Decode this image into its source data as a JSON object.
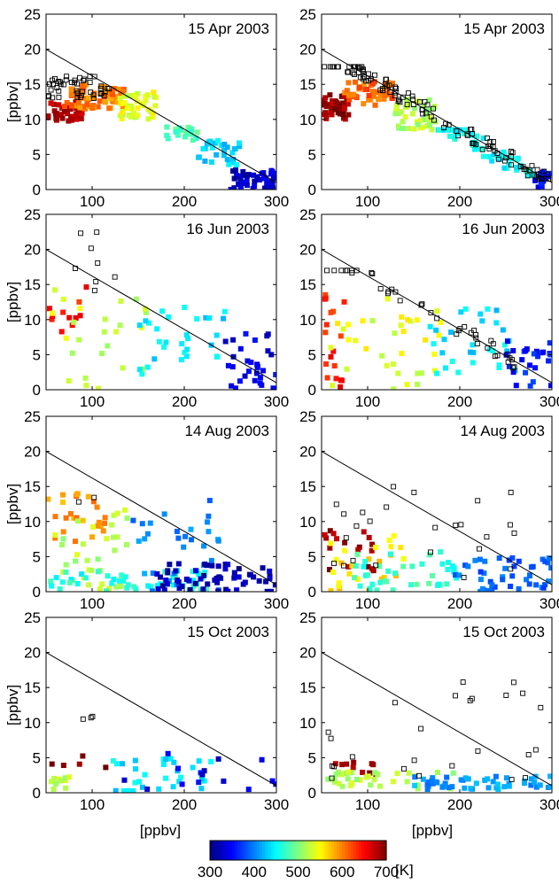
{
  "figure": {
    "xlabel": "[ppbv]",
    "ylabel": "[ppbv]",
    "colorbar": {
      "label": "[K]",
      "ticks": [
        300,
        400,
        500,
        600,
        700
      ],
      "range": [
        300,
        700
      ],
      "colormap": "jet"
    }
  },
  "chart_data": [
    {
      "type": "scatter",
      "row": 0,
      "col": 0,
      "date": "15 Apr 2003",
      "xlim": [
        50,
        300
      ],
      "ylim": [
        0,
        25
      ],
      "xticks": [
        100,
        200,
        300
      ],
      "yticks": [
        0,
        5,
        10,
        15,
        20,
        25
      ],
      "ylabel": "[ppbv]",
      "xlabel": "",
      "reference_line": {
        "x": [
          50,
          300
        ],
        "y": [
          20,
          1
        ]
      },
      "clusters": [
        {
          "marker": "open",
          "n": 45,
          "x": [
            52,
            120
          ],
          "y": [
            13,
            16.5
          ]
        },
        {
          "marker": "filled",
          "color_value": 680,
          "n": 45,
          "x": [
            52,
            90
          ],
          "y": [
            9.5,
            12.5
          ]
        },
        {
          "marker": "filled",
          "color_value": 600,
          "n": 70,
          "x": [
            70,
            135
          ],
          "y": [
            11.5,
            15
          ]
        },
        {
          "marker": "filled",
          "color_value": 540,
          "n": 40,
          "x": [
            130,
            170
          ],
          "y": [
            10,
            14
          ]
        },
        {
          "marker": "filled",
          "color_value": 480,
          "n": 20,
          "x": [
            180,
            215
          ],
          "y": [
            7,
            9
          ]
        },
        {
          "marker": "filled",
          "color_value": 430,
          "n": 30,
          "x": [
            215,
            260
          ],
          "y": [
            3.5,
            7
          ]
        },
        {
          "marker": "filled",
          "color_value": 330,
          "n": 45,
          "x": [
            250,
            300
          ],
          "y": [
            0,
            3
          ]
        }
      ]
    },
    {
      "type": "scatter",
      "row": 0,
      "col": 1,
      "date": "15 Apr 2003",
      "xlim": [
        50,
        300
      ],
      "ylim": [
        0,
        25
      ],
      "xticks": [
        100,
        200,
        300
      ],
      "yticks": [
        0,
        5,
        10,
        15,
        20,
        25
      ],
      "ylabel": "",
      "xlabel": "",
      "reference_line": {
        "x": [
          50,
          300
        ],
        "y": [
          20,
          1
        ]
      },
      "clusters": [
        {
          "marker": "open",
          "n": 110,
          "x": [
            52,
            300
          ],
          "y": [
            1.5,
            17.5
          ],
          "follows_line": true
        },
        {
          "marker": "filled",
          "color_value": 690,
          "n": 45,
          "x": [
            52,
            80
          ],
          "y": [
            10,
            13.5
          ]
        },
        {
          "marker": "filled",
          "color_value": 610,
          "n": 50,
          "x": [
            75,
            130
          ],
          "y": [
            12,
            15.5
          ]
        },
        {
          "marker": "filled",
          "color_value": 520,
          "n": 40,
          "x": [
            130,
            175
          ],
          "y": [
            8.5,
            13
          ]
        },
        {
          "marker": "filled",
          "color_value": 450,
          "n": 60,
          "x": [
            175,
            280
          ],
          "y": [
            2,
            8.5
          ],
          "follows_line": true
        },
        {
          "marker": "filled",
          "color_value": 350,
          "n": 15,
          "x": [
            280,
            300
          ],
          "y": [
            0.3,
            2.5
          ]
        }
      ]
    },
    {
      "type": "scatter",
      "row": 1,
      "col": 0,
      "date": "16 Jun 2003",
      "xlim": [
        50,
        300
      ],
      "ylim": [
        0,
        25
      ],
      "xticks": [
        100,
        200,
        300
      ],
      "yticks": [
        0,
        5,
        10,
        15,
        20,
        25
      ],
      "ylabel": "[ppbv]",
      "xlabel": "",
      "reference_line": {
        "x": [
          50,
          300
        ],
        "y": [
          20,
          1
        ]
      },
      "clusters": [
        {
          "marker": "open",
          "n": 8,
          "x": [
            55,
            135
          ],
          "y": [
            14,
            25
          ]
        },
        {
          "marker": "filled",
          "color_value": 640,
          "n": 12,
          "x": [
            52,
            95
          ],
          "y": [
            8,
            16
          ]
        },
        {
          "marker": "filled",
          "color_value": 530,
          "n": 25,
          "x": [
            55,
            160
          ],
          "y": [
            0,
            15
          ]
        },
        {
          "marker": "filled",
          "color_value": 440,
          "n": 30,
          "x": [
            150,
            250
          ],
          "y": [
            2,
            12
          ]
        },
        {
          "marker": "filled",
          "color_value": 340,
          "n": 30,
          "x": [
            240,
            300
          ],
          "y": [
            0,
            8
          ]
        }
      ]
    },
    {
      "type": "scatter",
      "row": 1,
      "col": 1,
      "date": "16 Jun 2003",
      "xlim": [
        50,
        300
      ],
      "ylim": [
        0,
        25
      ],
      "xticks": [
        100,
        200,
        300
      ],
      "yticks": [
        0,
        5,
        10,
        15,
        20,
        25
      ],
      "ylabel": "",
      "xlabel": "",
      "reference_line": {
        "x": [
          50,
          300
        ],
        "y": [
          20,
          1
        ]
      },
      "clusters": [
        {
          "marker": "open",
          "n": 40,
          "x": [
            55,
            260
          ],
          "y": [
            3,
            17
          ],
          "follows_line": true
        },
        {
          "marker": "filled",
          "color_value": 640,
          "n": 18,
          "x": [
            52,
            75
          ],
          "y": [
            0,
            15
          ]
        },
        {
          "marker": "filled",
          "color_value": 540,
          "n": 35,
          "x": [
            60,
            180
          ],
          "y": [
            0,
            13
          ]
        },
        {
          "marker": "filled",
          "color_value": 440,
          "n": 30,
          "x": [
            160,
            260
          ],
          "y": [
            2,
            12
          ]
        },
        {
          "marker": "filled",
          "color_value": 360,
          "n": 25,
          "x": [
            250,
            300
          ],
          "y": [
            0,
            7
          ]
        }
      ]
    },
    {
      "type": "scatter",
      "row": 2,
      "col": 0,
      "date": "14 Aug 2003",
      "xlim": [
        50,
        300
      ],
      "ylim": [
        0,
        25
      ],
      "xticks": [
        100,
        200,
        300
      ],
      "yticks": [
        0,
        5,
        10,
        15,
        20,
        25
      ],
      "ylabel": "[ppbv]",
      "xlabel": "",
      "reference_line": {
        "x": [
          50,
          300
        ],
        "y": [
          20,
          1
        ]
      },
      "clusters": [
        {
          "marker": "open",
          "n": 2,
          "x": [
            75,
            115
          ],
          "y": [
            12.5,
            13.5
          ]
        },
        {
          "marker": "filled",
          "color_value": 590,
          "n": 25,
          "x": [
            52,
            115
          ],
          "y": [
            7,
            14
          ]
        },
        {
          "marker": "filled",
          "color_value": 520,
          "n": 35,
          "x": [
            52,
            140
          ],
          "y": [
            0,
            12
          ]
        },
        {
          "marker": "filled",
          "color_value": 460,
          "n": 50,
          "x": [
            52,
            230
          ],
          "y": [
            0,
            3
          ]
        },
        {
          "marker": "filled",
          "color_value": 400,
          "n": 30,
          "x": [
            140,
            240
          ],
          "y": [
            0,
            13
          ]
        },
        {
          "marker": "filled",
          "color_value": 320,
          "n": 60,
          "x": [
            170,
            300
          ],
          "y": [
            0,
            4
          ]
        }
      ]
    },
    {
      "type": "scatter",
      "row": 2,
      "col": 1,
      "date": "14 Aug 2003",
      "xlim": [
        50,
        300
      ],
      "ylim": [
        0,
        25
      ],
      "xticks": [
        100,
        200,
        300
      ],
      "yticks": [
        0,
        5,
        10,
        15,
        20,
        25
      ],
      "ylabel": "",
      "xlabel": "",
      "reference_line": {
        "x": [
          50,
          300
        ],
        "y": [
          20,
          1
        ]
      },
      "clusters": [
        {
          "marker": "open",
          "n": 25,
          "x": [
            52,
            260
          ],
          "y": [
            2,
            15
          ]
        },
        {
          "marker": "filled",
          "color_value": 690,
          "n": 18,
          "x": [
            52,
            110
          ],
          "y": [
            3,
            9
          ]
        },
        {
          "marker": "filled",
          "color_value": 560,
          "n": 25,
          "x": [
            55,
            140
          ],
          "y": [
            0,
            8
          ]
        },
        {
          "marker": "filled",
          "color_value": 470,
          "n": 40,
          "x": [
            80,
            200
          ],
          "y": [
            0,
            6
          ]
        },
        {
          "marker": "filled",
          "color_value": 390,
          "n": 45,
          "x": [
            190,
            300
          ],
          "y": [
            0,
            5
          ]
        }
      ]
    },
    {
      "type": "scatter",
      "row": 3,
      "col": 0,
      "date": "15 Oct 2003",
      "xlim": [
        50,
        300
      ],
      "ylim": [
        0,
        25
      ],
      "xticks": [
        100,
        200,
        300
      ],
      "yticks": [
        0,
        5,
        10,
        15,
        20,
        25
      ],
      "ylabel": "[ppbv]",
      "xlabel": "[ppbv]",
      "reference_line": {
        "x": [
          50,
          300
        ],
        "y": [
          20,
          1
        ]
      },
      "clusters": [
        {
          "marker": "open",
          "n": 3,
          "x": [
            55,
            115
          ],
          "y": [
            10,
            11
          ]
        },
        {
          "marker": "filled",
          "color_value": 690,
          "n": 5,
          "x": [
            55,
            115
          ],
          "y": [
            3.5,
            5.5
          ]
        },
        {
          "marker": "filled",
          "color_value": 520,
          "n": 10,
          "x": [
            52,
            75
          ],
          "y": [
            0.5,
            2.5
          ]
        },
        {
          "marker": "filled",
          "color_value": 440,
          "n": 30,
          "x": [
            120,
            230
          ],
          "y": [
            0,
            5
          ]
        },
        {
          "marker": "filled",
          "color_value": 340,
          "n": 15,
          "x": [
            130,
            300
          ],
          "y": [
            0,
            6
          ]
        }
      ]
    },
    {
      "type": "scatter",
      "row": 3,
      "col": 1,
      "date": "15 Oct 2003",
      "xlim": [
        50,
        300
      ],
      "ylim": [
        0,
        25
      ],
      "xticks": [
        100,
        200,
        300
      ],
      "yticks": [
        0,
        5,
        10,
        15,
        20,
        25
      ],
      "ylabel": "",
      "xlabel": "[ppbv]",
      "reference_line": {
        "x": [
          50,
          300
        ],
        "y": [
          20,
          1
        ]
      },
      "clusters": [
        {
          "marker": "open",
          "n": 25,
          "x": [
            55,
            290
          ],
          "y": [
            1.5,
            16.5
          ]
        },
        {
          "marker": "filled",
          "color_value": 690,
          "n": 10,
          "x": [
            55,
            110
          ],
          "y": [
            2.5,
            5
          ]
        },
        {
          "marker": "filled",
          "color_value": 520,
          "n": 35,
          "x": [
            55,
            200
          ],
          "y": [
            0.5,
            3
          ]
        },
        {
          "marker": "filled",
          "color_value": 410,
          "n": 50,
          "x": [
            150,
            300
          ],
          "y": [
            0.5,
            2.5
          ]
        }
      ]
    }
  ]
}
